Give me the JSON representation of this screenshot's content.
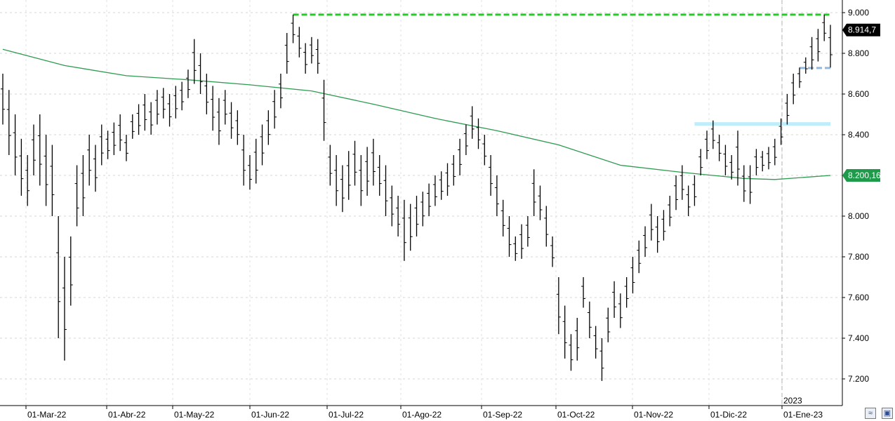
{
  "chart_data": {
    "type": "ohlc",
    "title": "",
    "xlabel": "",
    "ylabel": "",
    "ylim": [
      7100,
      9050
    ],
    "y_ticks": [
      "9.000",
      "8.800",
      "8.600",
      "8.400",
      "8.200",
      "8.000",
      "7.800",
      "7.600",
      "7.400",
      "7.200"
    ],
    "x_tick_labels": [
      "01-Mar-22",
      "01-Abr-22",
      "01-May-22",
      "01-Jun-22",
      "01-Jul-22",
      "01-Ago-22",
      "01-Sep-22",
      "01-Oct-22",
      "01-Nov-22",
      "01-Dic-22",
      "01-Ene-23"
    ],
    "year_label": "2023",
    "grid": true,
    "series": [
      {
        "name": "",
        "kind": "ohlc",
        "color": "#000000",
        "points": [
          {
            "i": 0,
            "h": 8700,
            "l": 8450
          },
          {
            "i": 1,
            "h": 8620,
            "l": 8300
          },
          {
            "i": 2,
            "h": 8500,
            "l": 8200
          },
          {
            "i": 3,
            "h": 8380,
            "l": 8100
          },
          {
            "i": 4,
            "h": 8300,
            "l": 8050
          },
          {
            "i": 5,
            "h": 8450,
            "l": 8200
          },
          {
            "i": 6,
            "h": 8500,
            "l": 8150
          },
          {
            "i": 7,
            "h": 8400,
            "l": 8050
          },
          {
            "i": 8,
            "h": 8350,
            "l": 8000
          },
          {
            "i": 9,
            "h": 8000,
            "l": 7400
          },
          {
            "i": 10,
            "h": 7800,
            "l": 7290
          },
          {
            "i": 11,
            "h": 7900,
            "l": 7560
          },
          {
            "i": 12,
            "h": 8250,
            "l": 7950
          },
          {
            "i": 13,
            "h": 8300,
            "l": 8000
          },
          {
            "i": 14,
            "h": 8400,
            "l": 8150
          },
          {
            "i": 15,
            "h": 8350,
            "l": 8120
          },
          {
            "i": 16,
            "h": 8450,
            "l": 8250
          },
          {
            "i": 17,
            "h": 8420,
            "l": 8280
          },
          {
            "i": 18,
            "h": 8460,
            "l": 8300
          },
          {
            "i": 19,
            "h": 8500,
            "l": 8320
          },
          {
            "i": 20,
            "h": 8400,
            "l": 8270
          },
          {
            "i": 21,
            "h": 8500,
            "l": 8380
          },
          {
            "i": 22,
            "h": 8550,
            "l": 8400
          },
          {
            "i": 23,
            "h": 8600,
            "l": 8420
          },
          {
            "i": 24,
            "h": 8560,
            "l": 8400
          },
          {
            "i": 25,
            "h": 8620,
            "l": 8450
          },
          {
            "i": 26,
            "h": 8630,
            "l": 8480
          },
          {
            "i": 27,
            "h": 8600,
            "l": 8440
          },
          {
            "i": 28,
            "h": 8640,
            "l": 8480
          },
          {
            "i": 29,
            "h": 8660,
            "l": 8520
          },
          {
            "i": 30,
            "h": 8720,
            "l": 8580
          },
          {
            "i": 31,
            "h": 8870,
            "l": 8650
          },
          {
            "i": 32,
            "h": 8800,
            "l": 8600
          },
          {
            "i": 33,
            "h": 8700,
            "l": 8500
          },
          {
            "i": 34,
            "h": 8640,
            "l": 8420
          },
          {
            "i": 35,
            "h": 8580,
            "l": 8350
          },
          {
            "i": 36,
            "h": 8620,
            "l": 8450
          },
          {
            "i": 37,
            "h": 8560,
            "l": 8380
          },
          {
            "i": 38,
            "h": 8520,
            "l": 8350
          },
          {
            "i": 39,
            "h": 8400,
            "l": 8150
          },
          {
            "i": 40,
            "h": 8300,
            "l": 8130
          },
          {
            "i": 41,
            "h": 8380,
            "l": 8160
          },
          {
            "i": 42,
            "h": 8450,
            "l": 8250
          },
          {
            "i": 43,
            "h": 8520,
            "l": 8350
          },
          {
            "i": 44,
            "h": 8620,
            "l": 8430
          },
          {
            "i": 45,
            "h": 8700,
            "l": 8530
          },
          {
            "i": 46,
            "h": 8900,
            "l": 8700
          },
          {
            "i": 47,
            "h": 8990,
            "l": 8850
          },
          {
            "i": 48,
            "h": 8930,
            "l": 8780
          },
          {
            "i": 49,
            "h": 8850,
            "l": 8700
          },
          {
            "i": 50,
            "h": 8880,
            "l": 8750
          },
          {
            "i": 51,
            "h": 8870,
            "l": 8700
          },
          {
            "i": 52,
            "h": 8670,
            "l": 8370
          },
          {
            "i": 53,
            "h": 8350,
            "l": 8150
          },
          {
            "i": 54,
            "h": 8300,
            "l": 8050
          },
          {
            "i": 55,
            "h": 8250,
            "l": 8020
          },
          {
            "i": 56,
            "h": 8320,
            "l": 8080
          },
          {
            "i": 57,
            "h": 8370,
            "l": 8150
          },
          {
            "i": 58,
            "h": 8300,
            "l": 8050
          },
          {
            "i": 59,
            "h": 8340,
            "l": 8100
          },
          {
            "i": 60,
            "h": 8380,
            "l": 8150
          },
          {
            "i": 61,
            "h": 8300,
            "l": 8100
          },
          {
            "i": 62,
            "h": 8250,
            "l": 8000
          },
          {
            "i": 63,
            "h": 8150,
            "l": 7950
          },
          {
            "i": 64,
            "h": 8100,
            "l": 7900
          },
          {
            "i": 65,
            "h": 8080,
            "l": 7780
          },
          {
            "i": 66,
            "h": 8060,
            "l": 7830
          },
          {
            "i": 67,
            "h": 8100,
            "l": 7900
          },
          {
            "i": 68,
            "h": 8120,
            "l": 7950
          },
          {
            "i": 69,
            "h": 8160,
            "l": 8000
          },
          {
            "i": 70,
            "h": 8200,
            "l": 8050
          },
          {
            "i": 71,
            "h": 8220,
            "l": 8080
          },
          {
            "i": 72,
            "h": 8260,
            "l": 8100
          },
          {
            "i": 73,
            "h": 8300,
            "l": 8150
          },
          {
            "i": 74,
            "h": 8380,
            "l": 8200
          },
          {
            "i": 75,
            "h": 8450,
            "l": 8300
          },
          {
            "i": 76,
            "h": 8540,
            "l": 8380
          },
          {
            "i": 77,
            "h": 8480,
            "l": 8330
          },
          {
            "i": 78,
            "h": 8400,
            "l": 8250
          },
          {
            "i": 79,
            "h": 8300,
            "l": 8100
          },
          {
            "i": 80,
            "h": 8200,
            "l": 8000
          },
          {
            "i": 81,
            "h": 8080,
            "l": 7900
          },
          {
            "i": 82,
            "h": 8000,
            "l": 7800
          },
          {
            "i": 83,
            "h": 7900,
            "l": 7780
          },
          {
            "i": 84,
            "h": 7960,
            "l": 7790
          },
          {
            "i": 85,
            "h": 8000,
            "l": 7850
          },
          {
            "i": 86,
            "h": 8230,
            "l": 8000
          },
          {
            "i": 87,
            "h": 8150,
            "l": 7980
          },
          {
            "i": 88,
            "h": 8050,
            "l": 7850
          },
          {
            "i": 89,
            "h": 7900,
            "l": 7750
          },
          {
            "i": 90,
            "h": 7700,
            "l": 7420
          },
          {
            "i": 91,
            "h": 7560,
            "l": 7300
          },
          {
            "i": 92,
            "h": 7420,
            "l": 7240
          },
          {
            "i": 93,
            "h": 7500,
            "l": 7290
          },
          {
            "i": 94,
            "h": 7700,
            "l": 7550
          },
          {
            "i": 95,
            "h": 7580,
            "l": 7400
          },
          {
            "i": 96,
            "h": 7460,
            "l": 7300
          },
          {
            "i": 97,
            "h": 7400,
            "l": 7190
          },
          {
            "i": 98,
            "h": 7550,
            "l": 7380
          },
          {
            "i": 99,
            "h": 7680,
            "l": 7500
          },
          {
            "i": 100,
            "h": 7620,
            "l": 7450
          },
          {
            "i": 101,
            "h": 7700,
            "l": 7550
          },
          {
            "i": 102,
            "h": 7800,
            "l": 7620
          },
          {
            "i": 103,
            "h": 7880,
            "l": 7720
          },
          {
            "i": 104,
            "h": 7950,
            "l": 7800
          },
          {
            "i": 105,
            "h": 8060,
            "l": 7880
          },
          {
            "i": 106,
            "h": 8000,
            "l": 7820
          },
          {
            "i": 107,
            "h": 8030,
            "l": 7880
          },
          {
            "i": 108,
            "h": 8100,
            "l": 7950
          },
          {
            "i": 109,
            "h": 8200,
            "l": 8030
          },
          {
            "i": 110,
            "h": 8250,
            "l": 8080
          },
          {
            "i": 111,
            "h": 8150,
            "l": 8000
          },
          {
            "i": 112,
            "h": 8200,
            "l": 8050
          },
          {
            "i": 113,
            "h": 8330,
            "l": 8200
          },
          {
            "i": 114,
            "h": 8420,
            "l": 8280
          },
          {
            "i": 115,
            "h": 8470,
            "l": 8330
          },
          {
            "i": 116,
            "h": 8400,
            "l": 8270
          },
          {
            "i": 117,
            "h": 8350,
            "l": 8200
          },
          {
            "i": 118,
            "h": 8300,
            "l": 8180
          },
          {
            "i": 119,
            "h": 8420,
            "l": 8150
          },
          {
            "i": 120,
            "h": 8250,
            "l": 8070
          },
          {
            "i": 121,
            "h": 8250,
            "l": 8060
          },
          {
            "i": 122,
            "h": 8330,
            "l": 8200
          },
          {
            "i": 123,
            "h": 8320,
            "l": 8220
          },
          {
            "i": 124,
            "h": 8340,
            "l": 8230
          },
          {
            "i": 125,
            "h": 8380,
            "l": 8250
          },
          {
            "i": 126,
            "h": 8480,
            "l": 8350
          },
          {
            "i": 127,
            "h": 8600,
            "l": 8450
          },
          {
            "i": 128,
            "h": 8700,
            "l": 8550
          },
          {
            "i": 129,
            "h": 8730,
            "l": 8630
          },
          {
            "i": 130,
            "h": 8780,
            "l": 8700
          },
          {
            "i": 131,
            "h": 8880,
            "l": 8720
          },
          {
            "i": 132,
            "h": 8920,
            "l": 8760
          },
          {
            "i": 133,
            "h": 8990,
            "l": 8860
          },
          {
            "i": 134,
            "h": 8940,
            "l": 8730
          }
        ]
      },
      {
        "name": "",
        "kind": "line",
        "color": "#2e9a52",
        "x": [
          0,
          10,
          20,
          30,
          40,
          50,
          60,
          70,
          80,
          90,
          100,
          110,
          115,
          120,
          125,
          134
        ],
        "values": [
          8820,
          8740,
          8690,
          8670,
          8645,
          8615,
          8550,
          8480,
          8420,
          8350,
          8250,
          8215,
          8200,
          8185,
          8180,
          8200
        ]
      }
    ],
    "reference_lines": [
      {
        "kind": "horizontal",
        "y": 8990,
        "x_from": 47,
        "x_to": 134,
        "color": "#22cc22",
        "style": "dashed"
      },
      {
        "kind": "horizontal",
        "y": 8453,
        "x_from": 112,
        "x_to": 134,
        "color": "#bfeefa",
        "style": "solid-thick"
      },
      {
        "kind": "horizontal",
        "y": 8728,
        "x_from": 129,
        "x_to": 134,
        "color": "#90b8e0",
        "style": "dashed"
      }
    ],
    "last_price": {
      "value": "8.914,7",
      "color": "#000000"
    },
    "ma_value": {
      "value": "8.200,16",
      "color": "#1e9a4a"
    }
  }
}
